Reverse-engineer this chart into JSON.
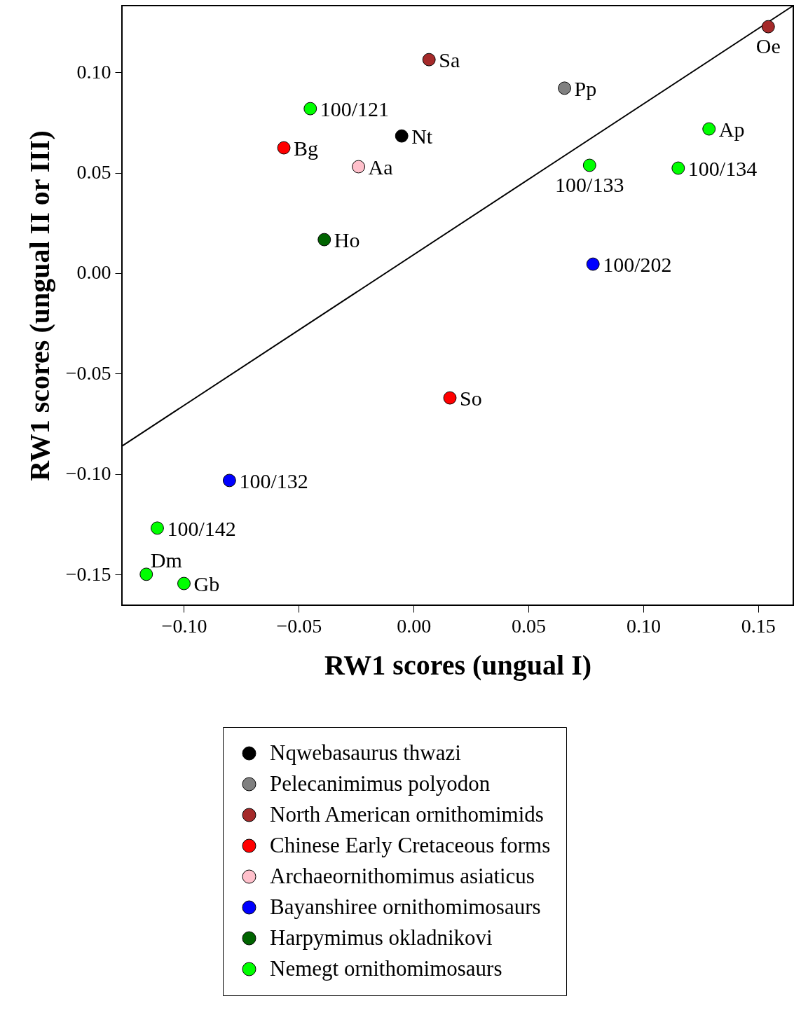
{
  "chart_data": {
    "type": "scatter",
    "xlabel": "RW1 scores (ungual I)",
    "ylabel": "RW1 scores (ungual II or III)",
    "xlim": [
      -0.127,
      0.1653
    ],
    "ylim": [
      -0.1653,
      0.1332
    ],
    "xticks": [
      {
        "value": -0.1,
        "label": "−0.10"
      },
      {
        "value": -0.05,
        "label": "−0.05"
      },
      {
        "value": 0,
        "label": "0.00"
      },
      {
        "value": 0.05,
        "label": "0.05"
      },
      {
        "value": 0.1,
        "label": "0.10"
      },
      {
        "value": 0.15,
        "label": "0.15"
      }
    ],
    "yticks": [
      {
        "value": -0.15,
        "label": "−0.15"
      },
      {
        "value": -0.1,
        "label": "−0.10"
      },
      {
        "value": -0.05,
        "label": "−0.05"
      },
      {
        "value": 0,
        "label": "0.00"
      },
      {
        "value": 0.05,
        "label": "0.05"
      },
      {
        "value": 0.1,
        "label": "0.10"
      }
    ],
    "grid": false,
    "legend": "bottom",
    "marker": "circle",
    "series": [
      {
        "type": "line",
        "color": "#000000",
        "line_style": "solid",
        "marker": "none",
        "x": [
          -0.127,
          0.1653
        ],
        "values": [
          -0.0861,
          0.1332
        ]
      },
      {
        "name": "Nqwebasaurus thwazi",
        "color": "#000000",
        "x": [
          -0.0052
        ],
        "values": [
          0.0683
        ]
      },
      {
        "name": "Pelecanimimus polyodon",
        "color": "#808080",
        "x": [
          0.0657
        ],
        "values": [
          0.0921
        ]
      },
      {
        "name": "North American ornithomimids",
        "color": "#a52a2a",
        "x": [
          0.0067,
          0.1544
        ],
        "values": [
          0.1063,
          0.1227
        ]
      },
      {
        "name": "Chinese Early Cretaceous forms",
        "color": "#ff0000",
        "x": [
          -0.0565,
          0.0158
        ],
        "values": [
          0.0624,
          -0.0621
        ]
      },
      {
        "name": "Archaeornithomimus asiaticus",
        "color": "#ffc0cb",
        "x": [
          -0.024
        ],
        "values": [
          0.053
        ]
      },
      {
        "name": "Bayanshiree ornithomimosaurs",
        "color": "#0000ff",
        "x": [
          0.0781,
          -0.0802
        ],
        "values": [
          0.0045,
          -0.1032
        ]
      },
      {
        "name": "Harpymimus okladnikovi",
        "color": "#006400",
        "x": [
          -0.0389
        ],
        "values": [
          0.0167
        ]
      },
      {
        "name": "Nemegt ornithomimosaurs",
        "color": "#00ff00",
        "x": [
          -0.045,
          0.1286,
          0.1152,
          0.0766,
          -0.1116,
          -0.1164,
          -0.1
        ],
        "values": [
          0.0819,
          0.0718,
          0.0523,
          0.0537,
          -0.1269,
          -0.1499,
          -0.1545
        ]
      }
    ],
    "annotations": [
      {
        "text": "Nt",
        "x": -0.0052,
        "y": 0.0683
      },
      {
        "text": "Pp",
        "x": 0.0657,
        "y": 0.0921
      },
      {
        "text": "Sa",
        "x": 0.0067,
        "y": 0.1063
      },
      {
        "text": "Oe",
        "x": 0.1544,
        "y": 0.1227
      },
      {
        "text": "Bg",
        "x": -0.0565,
        "y": 0.0624
      },
      {
        "text": "So",
        "x": 0.0158,
        "y": -0.0621
      },
      {
        "text": "Aa",
        "x": -0.024,
        "y": 0.053
      },
      {
        "text": "100/202",
        "x": 0.0781,
        "y": 0.0045
      },
      {
        "text": "100/132",
        "x": -0.0802,
        "y": -0.1032
      },
      {
        "text": "Ho",
        "x": -0.0389,
        "y": 0.0167
      },
      {
        "text": "100/121",
        "x": -0.045,
        "y": 0.0819
      },
      {
        "text": "Ap",
        "x": 0.1286,
        "y": 0.0718
      },
      {
        "text": "100/134",
        "x": 0.1152,
        "y": 0.0523
      },
      {
        "text": "100/133",
        "x": 0.0766,
        "y": 0.0537
      },
      {
        "text": "100/142",
        "x": -0.1116,
        "y": -0.1269
      },
      {
        "text": "Dm",
        "x": -0.1164,
        "y": -0.1499
      },
      {
        "text": "Gb",
        "x": -0.1,
        "y": -0.1545
      }
    ]
  }
}
